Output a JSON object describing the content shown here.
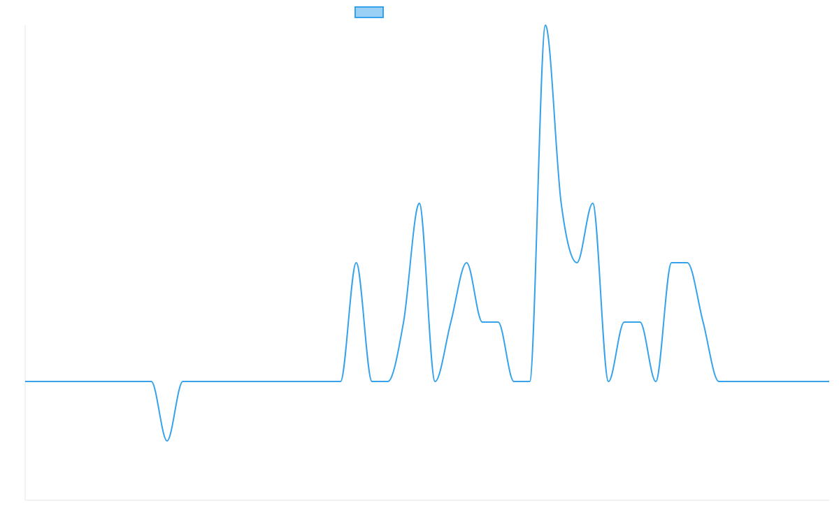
{
  "chart_data": {
    "type": "line",
    "title": "",
    "xlabel": "",
    "ylabel": "",
    "grid": false,
    "legend": {
      "position": "top-center",
      "swatch_color": "#36a2eb",
      "swatch_fill": "#9ad0f5"
    },
    "series": [
      {
        "color": "#36a2eb",
        "x": [
          0,
          1,
          2,
          3,
          4,
          5,
          6,
          7,
          8,
          9,
          10,
          11,
          12,
          13,
          14,
          15,
          16,
          17,
          18,
          19,
          20,
          21,
          22,
          23,
          24,
          25,
          26,
          27,
          28,
          29,
          30,
          31,
          32,
          33,
          34,
          35,
          36,
          37,
          38,
          39,
          40,
          41,
          42,
          43,
          44,
          45,
          46,
          47,
          48,
          49,
          50,
          51
        ],
        "y": [
          0,
          0,
          0,
          0,
          0,
          0,
          0,
          0,
          0,
          -5,
          0,
          0,
          0,
          0,
          0,
          0,
          0,
          0,
          0,
          0,
          0,
          10,
          0,
          0,
          5,
          15,
          0,
          5,
          10,
          5,
          5,
          0,
          0,
          30,
          15,
          10,
          15,
          0,
          5,
          5,
          0,
          10,
          10,
          5,
          0,
          0,
          0,
          0,
          0,
          0,
          0,
          0
        ]
      }
    ],
    "xlim": [
      0,
      51
    ],
    "ylim": [
      -10,
      30
    ]
  }
}
